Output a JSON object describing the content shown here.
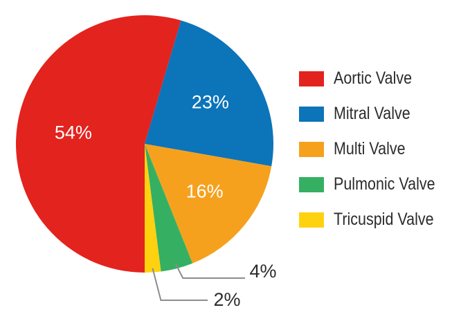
{
  "chart_data": {
    "type": "pie",
    "categories": [
      "Aortic Valve",
      "Mitral Valve",
      "Multi Valve",
      "Pulmonic Valve",
      "Tricuspid Valve"
    ],
    "values": [
      54,
      23,
      16,
      4,
      2
    ],
    "value_labels": [
      "54%",
      "23%",
      "16%",
      "4%",
      "2%"
    ],
    "colors": [
      "#e3231e",
      "#0c74b9",
      "#f6a11d",
      "#35b062",
      "#ffd20f"
    ],
    "legend": "right",
    "leader_line_color": "#8c8c8c"
  }
}
